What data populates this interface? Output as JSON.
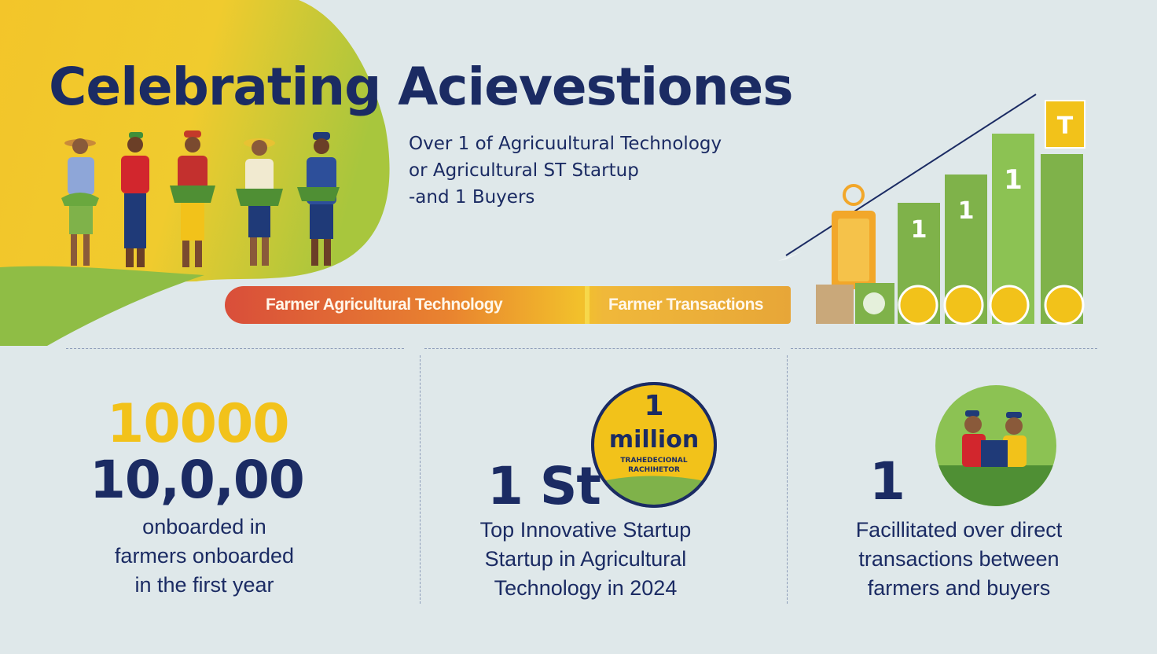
{
  "header": {
    "title": "Celebrating Acievestiones",
    "subtitle_lines": [
      "Over 1 of Agricuultural Technology",
      "or Agricultural ST Startup",
      "-and 1 Buyers"
    ]
  },
  "ribbon": {
    "left_label": "Farmer Agricultural Technology",
    "right_label": "Farmer Transactions"
  },
  "stats": [
    {
      "highlight_value": "10000",
      "value": "10,0,00",
      "description": [
        "onboarded in",
        "farmers onboarded",
        "in the first year"
      ]
    },
    {
      "value": "1 St",
      "badge": {
        "number": "1",
        "word": "million",
        "small_lines": [
          "TRAHEDECIONAL",
          "RACHIHETOR"
        ]
      },
      "description": [
        "Top Innovative Startup",
        "Startup in Agricultural",
        "Technology in 2024"
      ]
    },
    {
      "value": "1",
      "description": [
        "Facillitated over direct",
        "transactions between",
        "farmers and buyers"
      ]
    }
  ],
  "chart_art": {
    "bar_labels": [
      "1",
      "1",
      "1"
    ],
    "flag_label": "T"
  },
  "colors": {
    "navy": "#1b2b63",
    "yellow": "#f2c21a",
    "green": "#7fb24a",
    "orange": "#e9842f",
    "red": "#d94e3a",
    "background": "#dfe8ea"
  }
}
